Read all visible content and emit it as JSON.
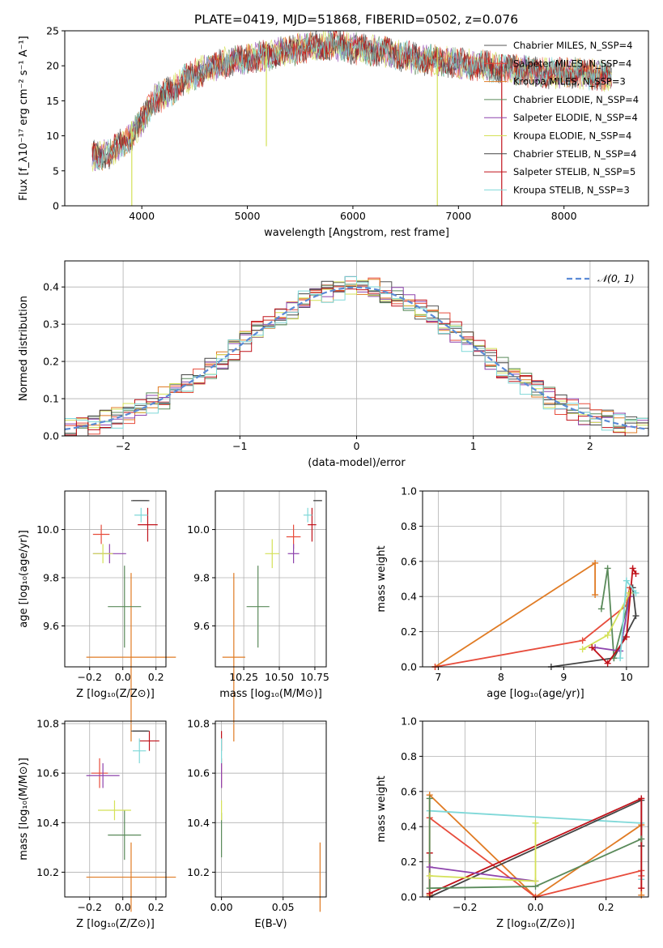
{
  "figure": {
    "title": "PLATE=0419, MJD=51868, FIBERID=0502, z=0.076"
  },
  "series_colors": [
    "#555555",
    "#e74c3c",
    "#e07b24",
    "#5a8a5a",
    "#8e44ad",
    "#d4e157",
    "#444444",
    "#c0121a",
    "#7fd8d8"
  ],
  "chart_data": [
    {
      "id": "spectrum",
      "type": "line",
      "title": "PLATE=0419, MJD=51868, FIBERID=0502, z=0.076",
      "xlabel": "wavelength [Angstrom, rest frame]",
      "ylabel": "Flux [f_λ10⁻¹⁷ erg cm⁻² s⁻¹ A⁻¹]",
      "xlim": [
        3270,
        8800
      ],
      "ylim": [
        0,
        25
      ],
      "xticks": [
        4000,
        5000,
        6000,
        7000,
        8000
      ],
      "yticks": [
        0,
        5,
        10,
        15,
        20,
        25
      ],
      "grid": false,
      "legend_position": "right",
      "legend": [
        "Chabrier MILES, N_SSP=4",
        "Salpeter MILES, N_SSP=4",
        "Kroupa MILES, N_SSP=3",
        "Chabrier ELODIE, N_SSP=4",
        "Salpeter ELODIE, N_SSP=4",
        "Kroupa ELODIE, N_SSP=4",
        "Chabrier STELIB, N_SSP=4",
        "Salpeter STELIB, N_SSP=5",
        "Kroupa STELIB, N_SSP=3"
      ],
      "continuum": {
        "x": [
          3530,
          3700,
          3900,
          4000,
          4100,
          4300,
          4400,
          4600,
          4800,
          5000,
          5200,
          5500,
          5800,
          6000,
          6300,
          6600,
          6900,
          7200,
          7500,
          7800,
          8100,
          8400
        ],
        "y": [
          7,
          7.5,
          10,
          12,
          15,
          16.5,
          18,
          19.5,
          20.5,
          21,
          21.5,
          22.5,
          23,
          22.5,
          22,
          21,
          20.5,
          20,
          19.5,
          19,
          19,
          18.5
        ]
      },
      "dips": [
        {
          "x": 3905,
          "y": 0
        },
        {
          "x": 6800,
          "y": 0
        },
        {
          "x": 7410,
          "y": 0
        },
        {
          "x": 5180,
          "y": 8.5
        }
      ]
    },
    {
      "id": "residuals",
      "type": "line",
      "xlabel": "(data-model)/error",
      "ylabel": "Normed distribution",
      "xlim": [
        -2.5,
        2.5
      ],
      "ylim": [
        0,
        0.47
      ],
      "xticks": [
        -2,
        -1,
        0,
        1,
        2
      ],
      "yticks": [
        0.0,
        0.1,
        0.2,
        0.3,
        0.4
      ],
      "grid": true,
      "legend": [
        "𝒩(0, 1)"
      ],
      "legend_position": "top-right",
      "bin_width": 0.1
    },
    {
      "id": "age-vs-z",
      "type": "scatter",
      "xlabel": "Z [log₁₀(Z/Z⊙)]",
      "ylabel": "age  [log₁₀(age/yr)]",
      "xlim": [
        -0.35,
        0.26
      ],
      "ylim": [
        9.43,
        10.16
      ],
      "xticks": [
        -0.2,
        0.0,
        0.2
      ],
      "yticks": [
        9.6,
        9.8,
        10.0
      ],
      "grid": true,
      "points": [
        {
          "s": 0,
          "x": 0.1,
          "y": 10.12,
          "xe": 0.05,
          "ye": 0.0
        },
        {
          "s": 1,
          "x": -0.13,
          "y": 9.98,
          "xe": 0.05,
          "ye": 0.04
        },
        {
          "s": 2,
          "x": 0.05,
          "y": 9.47,
          "xe": 0.27,
          "ye": 0.35
        },
        {
          "s": 3,
          "x": 0.01,
          "y": 9.68,
          "xe": 0.1,
          "ye": 0.17
        },
        {
          "s": 4,
          "x": -0.08,
          "y": 9.9,
          "xe": 0.1,
          "ye": 0.04
        },
        {
          "s": 5,
          "x": -0.12,
          "y": 9.9,
          "xe": 0.06,
          "ye": 0.04
        },
        {
          "s": 6,
          "x": 0.11,
          "y": 10.12,
          "xe": 0.05,
          "ye": 0.0
        },
        {
          "s": 7,
          "x": 0.15,
          "y": 10.02,
          "xe": 0.06,
          "ye": 0.07
        },
        {
          "s": 8,
          "x": 0.11,
          "y": 10.06,
          "xe": 0.04,
          "ye": 0.03
        },
        {
          "s": 9,
          "x": -0.13,
          "y": 10.09,
          "xe": 0.12,
          "ye": 0.04
        }
      ]
    },
    {
      "id": "age-vs-mass",
      "type": "scatter",
      "xlabel": "mass [log₁₀(M/M⊙)]",
      "ylabel": "",
      "xlim": [
        10.05,
        10.83
      ],
      "ylim": [
        9.43,
        10.16
      ],
      "xticks": [
        10.25,
        10.5,
        10.75
      ],
      "yticks": [
        9.6,
        9.8,
        10.0
      ],
      "grid": true,
      "points": [
        {
          "s": 0,
          "x": 10.77,
          "y": 10.12,
          "xe": 0.03,
          "ye": 0.0
        },
        {
          "s": 1,
          "x": 10.6,
          "y": 9.97,
          "xe": 0.05,
          "ye": 0.05
        },
        {
          "s": 2,
          "x": 10.18,
          "y": 9.47,
          "xe": 0.08,
          "ye": 0.35
        },
        {
          "s": 3,
          "x": 10.35,
          "y": 9.68,
          "xe": 0.08,
          "ye": 0.17
        },
        {
          "s": 4,
          "x": 10.6,
          "y": 9.9,
          "xe": 0.04,
          "ye": 0.04
        },
        {
          "s": 5,
          "x": 10.45,
          "y": 9.9,
          "xe": 0.05,
          "ye": 0.06
        },
        {
          "s": 6,
          "x": 10.77,
          "y": 10.12,
          "xe": 0.03,
          "ye": 0.0
        },
        {
          "s": 7,
          "x": 10.73,
          "y": 10.02,
          "xe": 0.03,
          "ye": 0.07
        },
        {
          "s": 8,
          "x": 10.7,
          "y": 10.06,
          "xe": 0.03,
          "ye": 0.03
        },
        {
          "s": 9,
          "x": 10.6,
          "y": 10.09,
          "xe": 0.06,
          "ye": 0.03
        }
      ]
    },
    {
      "id": "weight-vs-age",
      "type": "line",
      "xlabel": "age  [log₁₀(age/yr)]",
      "ylabel": "mass weight",
      "xlim": [
        6.75,
        10.35
      ],
      "ylim": [
        0.0,
        1.0
      ],
      "xticks": [
        7,
        8,
        9,
        10
      ],
      "yticks": [
        0.0,
        0.2,
        0.4,
        0.6,
        0.8,
        1.0
      ],
      "grid": true,
      "series": [
        {
          "s": 2,
          "x": [
            6.95,
            9.5,
            9.5
          ],
          "y": [
            0.0,
            0.59,
            0.41
          ]
        },
        {
          "s": 1,
          "x": [
            6.95,
            9.3,
            10.0,
            10.05
          ],
          "y": [
            0.0,
            0.15,
            0.35,
            0.45
          ]
        },
        {
          "s": 6,
          "x": [
            8.8,
            9.8,
            10.15,
            10.1
          ],
          "y": [
            0.0,
            0.05,
            0.29,
            0.45
          ]
        },
        {
          "s": 3,
          "x": [
            9.6,
            9.7,
            9.8,
            10.05
          ],
          "y": [
            0.33,
            0.56,
            0.05,
            0.4
          ]
        },
        {
          "s": 4,
          "x": [
            9.5,
            9.9,
            10.05
          ],
          "y": [
            0.11,
            0.09,
            0.4
          ]
        },
        {
          "s": 5,
          "x": [
            9.3,
            9.7,
            10.05
          ],
          "y": [
            0.1,
            0.18,
            0.42
          ]
        },
        {
          "s": 7,
          "x": [
            9.45,
            9.7,
            10.0,
            10.1,
            10.15
          ],
          "y": [
            0.11,
            0.02,
            0.17,
            0.56,
            0.53
          ]
        },
        {
          "s": 8,
          "x": [
            9.9,
            10.0,
            10.15
          ],
          "y": [
            0.05,
            0.49,
            0.42
          ]
        },
        {
          "s": 9,
          "x": [
            9.7,
            9.95,
            10.1
          ],
          "y": [
            0.12,
            0.27,
            0.46
          ]
        }
      ]
    },
    {
      "id": "mass-vs-z",
      "type": "scatter",
      "xlabel": "Z [log₁₀(Z/Z⊙)]",
      "ylabel": "mass [log₁₀(M/M⊙)]",
      "xlim": [
        -0.35,
        0.26
      ],
      "ylim": [
        10.1,
        10.81
      ],
      "xticks": [
        -0.2,
        0.0,
        0.2
      ],
      "yticks": [
        10.2,
        10.4,
        10.6,
        10.8
      ],
      "grid": true,
      "points": [
        {
          "s": 0,
          "x": 0.1,
          "y": 10.77,
          "xe": 0.05,
          "ye": 0.0
        },
        {
          "s": 1,
          "x": -0.14,
          "y": 10.6,
          "xe": 0.05,
          "ye": 0.06
        },
        {
          "s": 2,
          "x": 0.05,
          "y": 10.18,
          "xe": 0.27,
          "ye": 0.14
        },
        {
          "s": 3,
          "x": 0.01,
          "y": 10.35,
          "xe": 0.1,
          "ye": 0.1
        },
        {
          "s": 4,
          "x": -0.12,
          "y": 10.59,
          "xe": 0.1,
          "ye": 0.05
        },
        {
          "s": 5,
          "x": -0.05,
          "y": 10.45,
          "xe": 0.1,
          "ye": 0.04
        },
        {
          "s": 6,
          "x": 0.11,
          "y": 10.77,
          "xe": 0.05,
          "ye": 0.0
        },
        {
          "s": 7,
          "x": 0.16,
          "y": 10.73,
          "xe": 0.06,
          "ye": 0.04
        },
        {
          "s": 8,
          "x": 0.1,
          "y": 10.69,
          "xe": 0.04,
          "ye": 0.05
        },
        {
          "s": 9,
          "x": -0.1,
          "y": 10.59,
          "xe": 0.13,
          "ye": 0.0
        }
      ]
    },
    {
      "id": "mass-vs-ebv",
      "type": "scatter",
      "xlabel": "E(B-V)",
      "ylabel": "",
      "xlim": [
        -0.005,
        0.085
      ],
      "ylim": [
        10.1,
        10.81
      ],
      "xticks": [
        0.0,
        0.05
      ],
      "yticks": [
        10.2,
        10.4,
        10.6,
        10.8
      ],
      "grid": true,
      "points": [
        {
          "s": 0,
          "x": 0.0,
          "y": 10.77,
          "xe": 0.0,
          "ye": 0.0
        },
        {
          "s": 1,
          "x": 0.0,
          "y": 10.6,
          "xe": 0.0,
          "ye": 0.06
        },
        {
          "s": 2,
          "x": 0.08,
          "y": 10.18,
          "xe": 0.0,
          "ye": 0.14
        },
        {
          "s": 3,
          "x": 0.0,
          "y": 10.35,
          "xe": 0.0,
          "ye": 0.09
        },
        {
          "s": 4,
          "x": 0.0,
          "y": 10.59,
          "xe": 0.0,
          "ye": 0.05
        },
        {
          "s": 5,
          "x": 0.0,
          "y": 10.45,
          "xe": 0.0,
          "ye": 0.04
        },
        {
          "s": 6,
          "x": 0.0,
          "y": 10.77,
          "xe": 0.0,
          "ye": 0.0
        },
        {
          "s": 7,
          "x": 0.0,
          "y": 10.73,
          "xe": 0.0,
          "ye": 0.04
        },
        {
          "s": 8,
          "x": 0.0,
          "y": 10.69,
          "xe": 0.0,
          "ye": 0.05
        },
        {
          "s": 9,
          "x": 0.0,
          "y": 10.62,
          "xe": 0.0,
          "ye": 0.05
        }
      ]
    },
    {
      "id": "weight-vs-z",
      "type": "line",
      "xlabel": "Z [log₁₀(Z/Z⊙)]",
      "ylabel": "mass weight",
      "xlim": [
        -0.32,
        0.32
      ],
      "ylim": [
        0.0,
        1.0
      ],
      "xticks": [
        -0.2,
        0.0,
        0.2
      ],
      "yticks": [
        0.0,
        0.2,
        0.4,
        0.6,
        0.8,
        1.0
      ],
      "grid": true,
      "series": [
        {
          "s": 2,
          "x": [
            -0.3,
            -0.3,
            0.0,
            0.3,
            0.3
          ],
          "y": [
            0.01,
            0.58,
            0.0,
            0.41,
            0.01
          ]
        },
        {
          "s": 1,
          "x": [
            -0.3,
            0.0,
            0.3,
            0.3
          ],
          "y": [
            0.45,
            0.0,
            0.15,
            0.12
          ]
        },
        {
          "s": 9,
          "x": [
            -0.3,
            0.0,
            0.3,
            0.3
          ],
          "y": [
            0.45,
            0.27,
            0.09,
            0.09
          ]
        },
        {
          "s": 8,
          "x": [
            -0.3,
            0.3,
            0.3
          ],
          "y": [
            0.49,
            0.42,
            0.1
          ]
        },
        {
          "s": 6,
          "x": [
            -0.3,
            0.3,
            0.3
          ],
          "y": [
            0.0,
            0.55,
            0.29
          ]
        },
        {
          "s": 7,
          "x": [
            -0.3,
            -0.3,
            0.3,
            0.3
          ],
          "y": [
            0.25,
            0.02,
            0.56,
            0.05
          ]
        },
        {
          "s": 3,
          "x": [
            -0.3,
            -0.3,
            0.0,
            0.3
          ],
          "y": [
            0.56,
            0.05,
            0.06,
            0.33
          ]
        },
        {
          "s": 4,
          "x": [
            -0.3,
            0.0
          ],
          "y": [
            0.17,
            0.09
          ]
        },
        {
          "s": 5,
          "x": [
            -0.3,
            0.0,
            0.0
          ],
          "y": [
            0.12,
            0.09,
            0.42
          ]
        }
      ]
    }
  ]
}
